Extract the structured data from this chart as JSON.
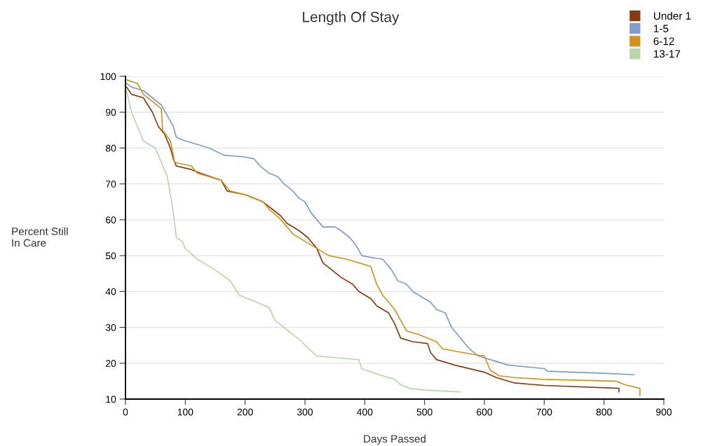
{
  "chart_data": {
    "type": "line",
    "title": "Length Of Stay",
    "xlabel": "Days Passed",
    "ylabel": "Percent Still\nIn Care",
    "xlim": [
      0,
      900
    ],
    "xticks": [
      0,
      100,
      200,
      300,
      400,
      500,
      600,
      700,
      800,
      900
    ],
    "ylim": [
      10,
      100
    ],
    "yticks": [
      10,
      20,
      30,
      40,
      50,
      60,
      70,
      80,
      90,
      100
    ],
    "grid": "y",
    "legend": "top right",
    "line_style": "solid",
    "marker": "none",
    "series": [
      {
        "name": "Under 1",
        "color": "#8b3a0f",
        "x": [
          2,
          10,
          30,
          45,
          55,
          65,
          75,
          80,
          85,
          110,
          125,
          160,
          170,
          200,
          230,
          245,
          260,
          270,
          290,
          305,
          320,
          330,
          345,
          360,
          380,
          390,
          410,
          420,
          440,
          450,
          460,
          480,
          505,
          510,
          520,
          550,
          600,
          620,
          650,
          700,
          825,
          825
        ],
        "values": [
          97,
          95,
          94,
          90,
          86,
          84,
          80,
          77,
          75,
          74,
          73,
          71,
          68,
          67,
          65,
          63,
          61,
          59,
          57,
          55,
          52,
          48,
          46,
          44,
          42,
          40,
          38,
          36,
          34,
          31,
          27,
          26,
          25.5,
          23,
          21,
          19.5,
          17.5,
          16,
          14.5,
          13.8,
          13,
          12
        ]
      },
      {
        "name": "1-5",
        "color": "#7f9ccb",
        "x": [
          2,
          10,
          30,
          45,
          60,
          70,
          80,
          85,
          100,
          120,
          140,
          165,
          200,
          215,
          225,
          240,
          255,
          265,
          280,
          290,
          300,
          310,
          320,
          330,
          350,
          360,
          375,
          385,
          395,
          410,
          430,
          445,
          455,
          470,
          480,
          500,
          510,
          520,
          535,
          545,
          555,
          565,
          575,
          590,
          610,
          640,
          700,
          705,
          750,
          800,
          850
        ],
        "values": [
          98,
          97,
          96,
          94,
          92,
          89,
          86,
          83,
          82,
          81,
          80,
          78,
          77.5,
          77,
          75,
          73,
          72,
          70,
          68,
          66,
          65,
          62,
          60,
          58,
          58,
          57,
          55,
          53,
          50,
          49.5,
          49,
          46,
          43,
          42,
          40,
          38,
          37,
          35,
          34,
          30,
          28,
          26,
          24,
          22,
          21,
          19.5,
          18.5,
          17.8,
          17.5,
          17.2,
          16.8
        ]
      },
      {
        "name": "6-12",
        "color": "#d19318",
        "x": [
          2,
          20,
          30,
          45,
          60,
          62,
          75,
          80,
          82,
          110,
          120,
          160,
          175,
          200,
          230,
          240,
          260,
          280,
          300,
          320,
          340,
          370,
          390,
          410,
          420,
          430,
          450,
          460,
          470,
          490,
          520,
          530,
          580,
          600,
          610,
          625,
          650,
          700,
          820,
          835,
          860,
          860
        ],
        "values": [
          99,
          98,
          95,
          93,
          91,
          85,
          82,
          78,
          76,
          75,
          73,
          71,
          68,
          67,
          65,
          63,
          60,
          56,
          54,
          52,
          50,
          49,
          48,
          47,
          42,
          39,
          35,
          32,
          29,
          28,
          26,
          24,
          22.5,
          22,
          18,
          16.5,
          16,
          15.5,
          15,
          14,
          13,
          11
        ]
      },
      {
        "name": "13-17",
        "color": "#b9d6a9",
        "x": [
          2,
          10,
          20,
          30,
          50,
          60,
          70,
          80,
          85,
          95,
          100,
          120,
          150,
          175,
          190,
          220,
          240,
          250,
          265,
          280,
          295,
          300,
          320,
          390,
          395,
          420,
          450,
          460,
          475,
          500,
          560
        ],
        "values": [
          96,
          90,
          86,
          82,
          80,
          76,
          72,
          62,
          55,
          54,
          52,
          49,
          46,
          43,
          39,
          37,
          35.5,
          32,
          30,
          28,
          26,
          25,
          22,
          21,
          18.5,
          17,
          15.5,
          14,
          13,
          12.5,
          12
        ]
      }
    ]
  }
}
